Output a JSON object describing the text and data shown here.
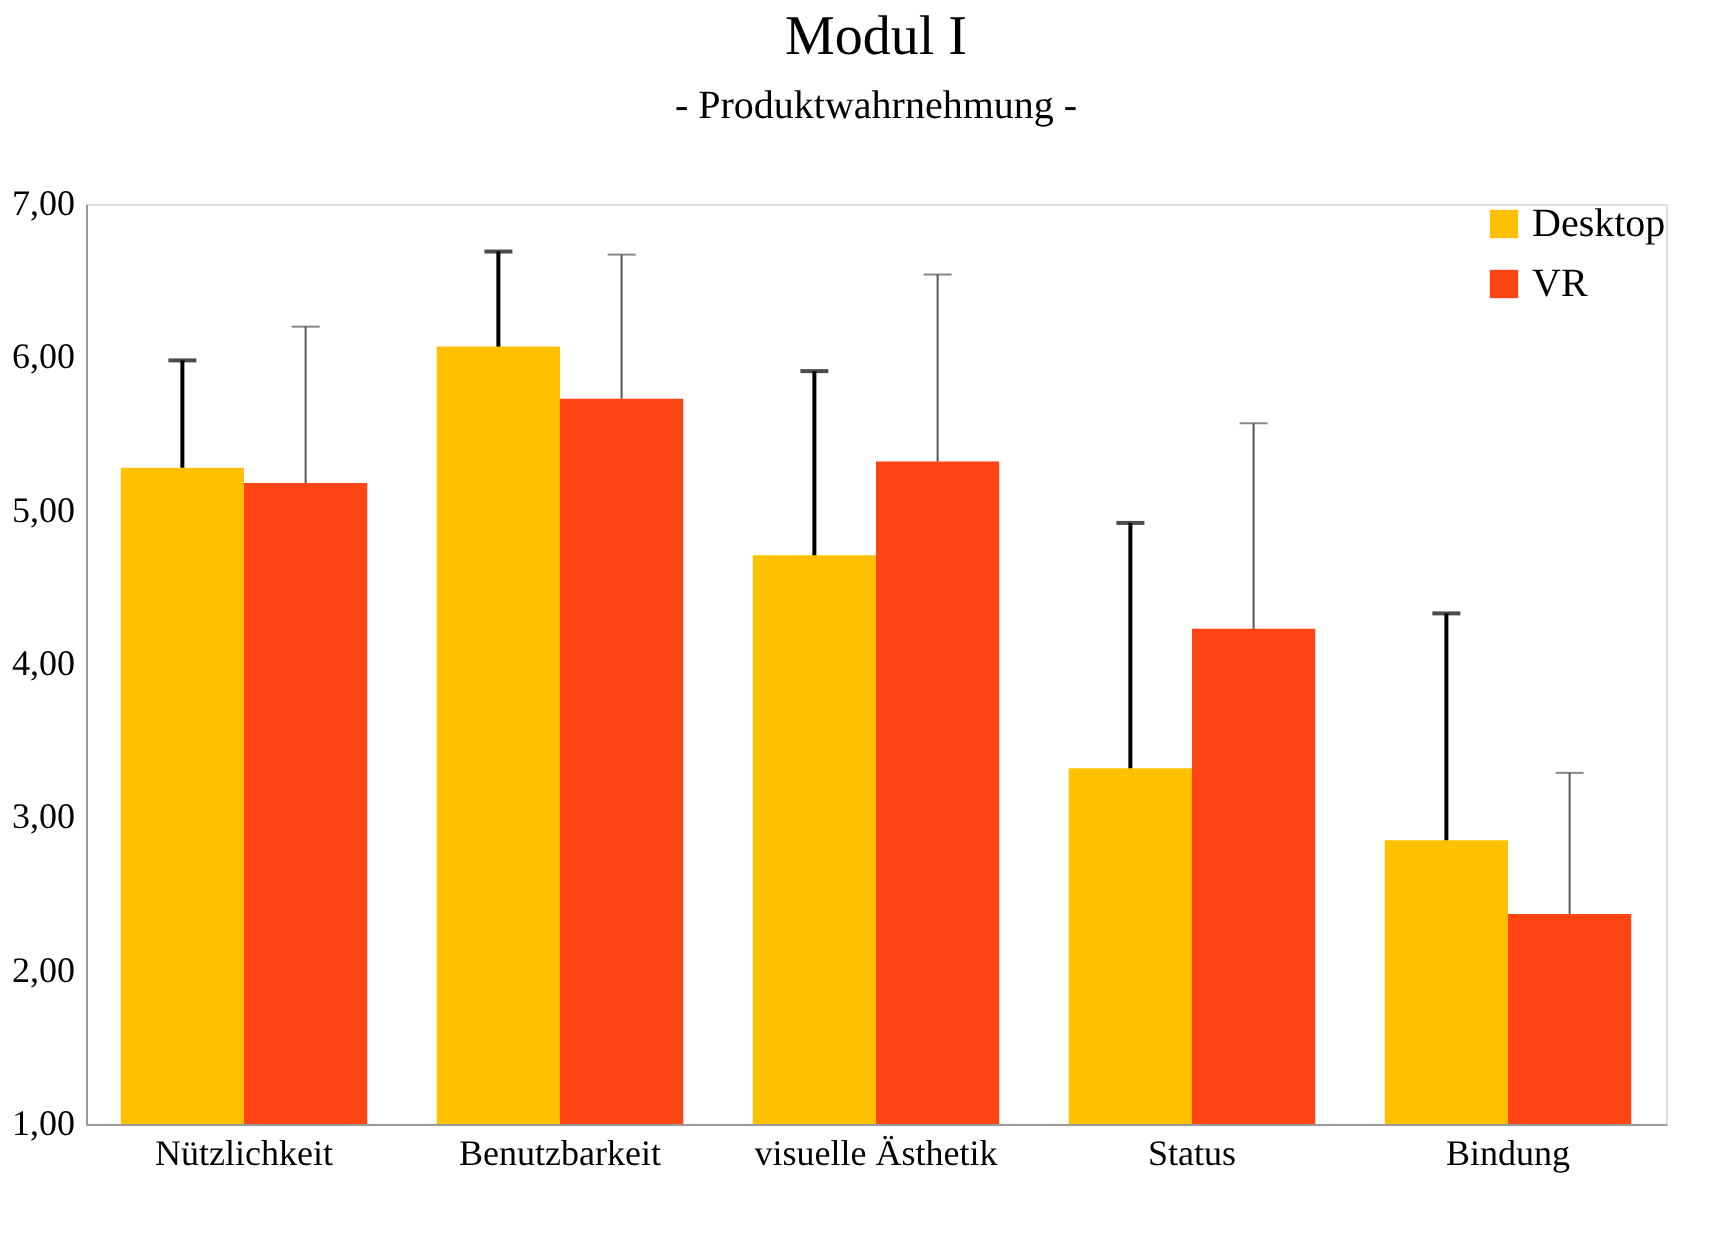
{
  "chart_data": {
    "type": "bar",
    "title": "Modul I",
    "subtitle": "- Produktwahrnehmung -",
    "categories": [
      "Nützlichkeit",
      "Benutzbarkeit",
      "visuelle Ästhetik",
      "Status",
      "Bindung"
    ],
    "series": [
      {
        "name": "Desktop",
        "color": "#ffc000",
        "values": [
          5.28,
          6.07,
          4.71,
          3.32,
          2.85
        ],
        "errors": [
          [
            5.28,
            5.98
          ],
          [
            6.07,
            6.69
          ],
          [
            4.71,
            5.91
          ],
          [
            3.32,
            4.92
          ],
          [
            2.85,
            4.33
          ]
        ]
      },
      {
        "name": "VR",
        "color": "#ff4513",
        "values": [
          5.18,
          5.73,
          5.32,
          4.23,
          2.37
        ],
        "errors": [
          [
            5.18,
            6.2
          ],
          [
            5.73,
            6.67
          ],
          [
            5.32,
            6.54
          ],
          [
            4.23,
            5.57
          ],
          [
            2.37,
            3.29
          ]
        ]
      }
    ],
    "ylim": [
      1,
      7
    ],
    "yticks": [
      {
        "value": 1,
        "label": "1,00"
      },
      {
        "value": 2,
        "label": "2,00"
      },
      {
        "value": 3,
        "label": "3,00"
      },
      {
        "value": 4,
        "label": "4,00"
      },
      {
        "value": 5,
        "label": "5,00"
      },
      {
        "value": 6,
        "label": "6,00"
      },
      {
        "value": 7,
        "label": "7,00"
      }
    ],
    "grid": false,
    "legend": "top right"
  }
}
